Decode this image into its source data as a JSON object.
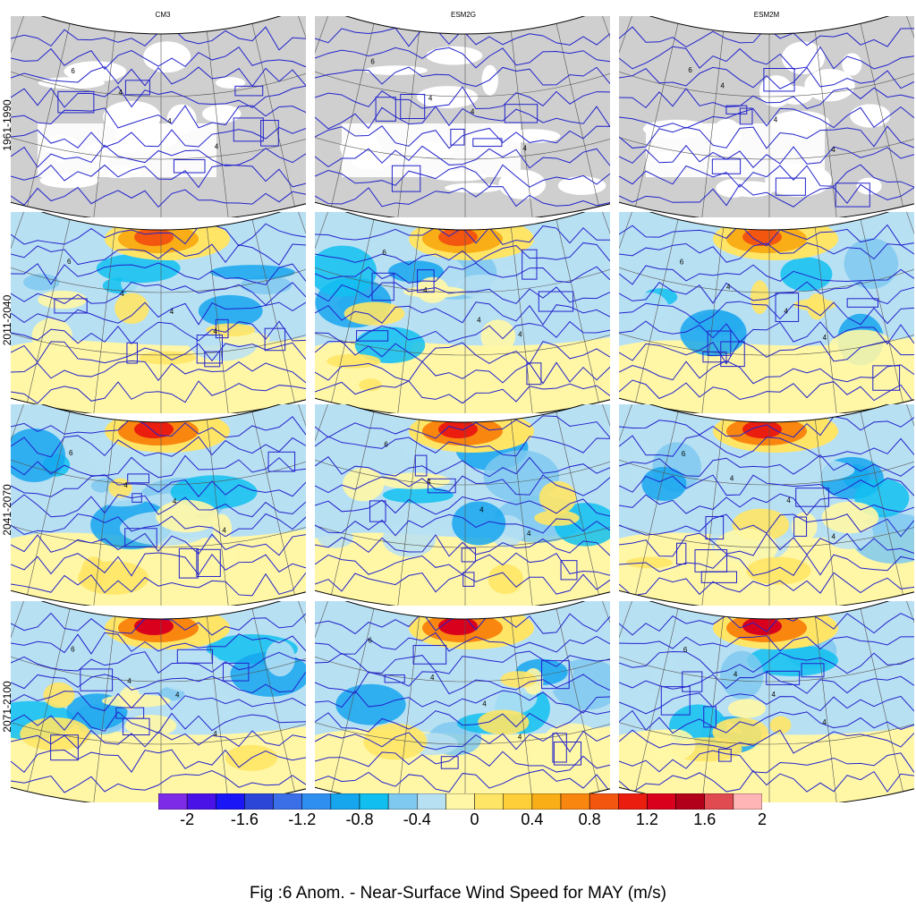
{
  "caption": "Fig :6  Anom.  - Near-Surface Wind Speed for MAY (m/s)",
  "columns": [
    "CM3",
    "ESM2G",
    "ESM2M"
  ],
  "rows": [
    "1961-1990",
    "2011-2040",
    "2041-2070",
    "2071-2100"
  ],
  "panel_rows": [
    {
      "period": "1961-1990",
      "kind": "climatology",
      "fill": "#cfcfcf",
      "contours": [
        "6",
        "4",
        "4",
        "4"
      ]
    },
    {
      "period": "2011-2040",
      "kind": "anomaly",
      "contours": [
        "6",
        "4",
        "4",
        "4"
      ]
    },
    {
      "period": "2041-2070",
      "kind": "anomaly",
      "contours": [
        "6",
        "4",
        "4",
        "4"
      ]
    },
    {
      "period": "2071-2100",
      "kind": "anomaly",
      "contours": [
        "6",
        "4",
        "4",
        "4"
      ]
    }
  ],
  "colorbar": {
    "colors": [
      "#7d2be6",
      "#4b12e8",
      "#1a16f5",
      "#2c46d8",
      "#3a6fe8",
      "#2f8ff0",
      "#16a6ee",
      "#10bff0",
      "#7fc9f0",
      "#b8e0f3",
      "#fff7a6",
      "#ffe566",
      "#ffcf3a",
      "#f9ad17",
      "#f9860f",
      "#f3570f",
      "#ea1d0e",
      "#d8001d",
      "#b3001a",
      "#e04a51",
      "#ffb5b5"
    ],
    "tick_labels": [
      "-2",
      "-1.6",
      "-1.2",
      "-0.8",
      "-0.4",
      "0",
      "0.4",
      "0.8",
      "1.2",
      "1.6",
      "2"
    ]
  },
  "chart_data": {
    "type": "heatmap",
    "title": "Fig :6  Anom.  - Near-Surface Wind Speed for MAY (m/s)",
    "models": [
      "CM3",
      "ESM2G",
      "ESM2M"
    ],
    "periods": [
      "1961-1990",
      "2011-2040",
      "2041-2070",
      "2071-2100"
    ],
    "colorbar_range": [
      -2,
      2
    ],
    "colorbar_ticks": [
      -2,
      -1.6,
      -1.2,
      -0.8,
      -0.4,
      0,
      0.4,
      0.8,
      1.2,
      1.6,
      2
    ],
    "contour_labels": [
      4,
      6
    ]
  },
  "colors": {
    "outline": "#000000",
    "contour": "#2222cc",
    "grid": "#555555"
  }
}
